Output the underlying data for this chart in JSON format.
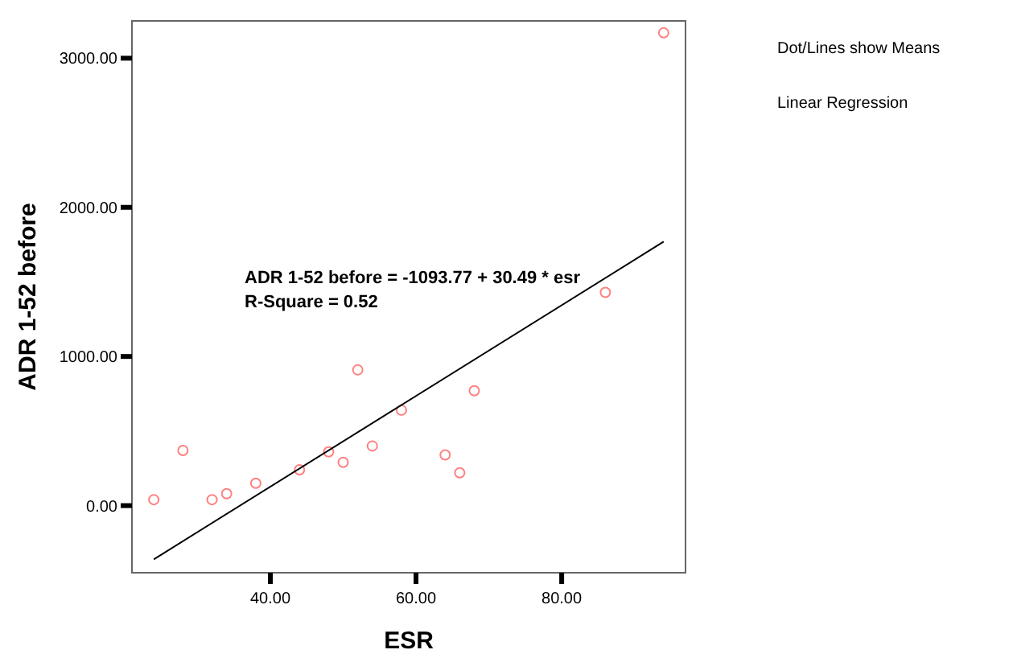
{
  "chart_data": {
    "type": "scatter",
    "xlabel": "ESR",
    "ylabel": "ADR 1-52 before",
    "xlim": [
      21,
      97
    ],
    "ylim": [
      -450,
      3250
    ],
    "xticks": [
      {
        "value": 40,
        "label": "40.00"
      },
      {
        "value": 60,
        "label": "60.00"
      },
      {
        "value": 80,
        "label": "80.00"
      }
    ],
    "yticks": [
      {
        "value": 0,
        "label": "0.00"
      },
      {
        "value": 1000,
        "label": "1000.00"
      },
      {
        "value": 2000,
        "label": "2000.00"
      },
      {
        "value": 3000,
        "label": "3000.00"
      }
    ],
    "grid": false,
    "marker": "circle",
    "series": [
      {
        "color": "#ff8080",
        "x": [
          24,
          28,
          32,
          34,
          38,
          44,
          48,
          50,
          52,
          54,
          58,
          64,
          66,
          68,
          86,
          94
        ],
        "values": [
          40,
          370,
          40,
          80,
          150,
          240,
          360,
          290,
          910,
          400,
          640,
          340,
          220,
          770,
          1430,
          3170
        ]
      },
      {
        "type": "line",
        "color": "#000000",
        "x": [
          24,
          94
        ],
        "values": [
          -360,
          1770
        ],
        "marker": "none",
        "line_style": "solid"
      }
    ],
    "annotations": [
      "ADR 1-52 before = -1093.77 + 30.49 * esr",
      "R-Square = 0.52",
      "Dot/Lines show Means",
      "Linear Regression"
    ]
  }
}
